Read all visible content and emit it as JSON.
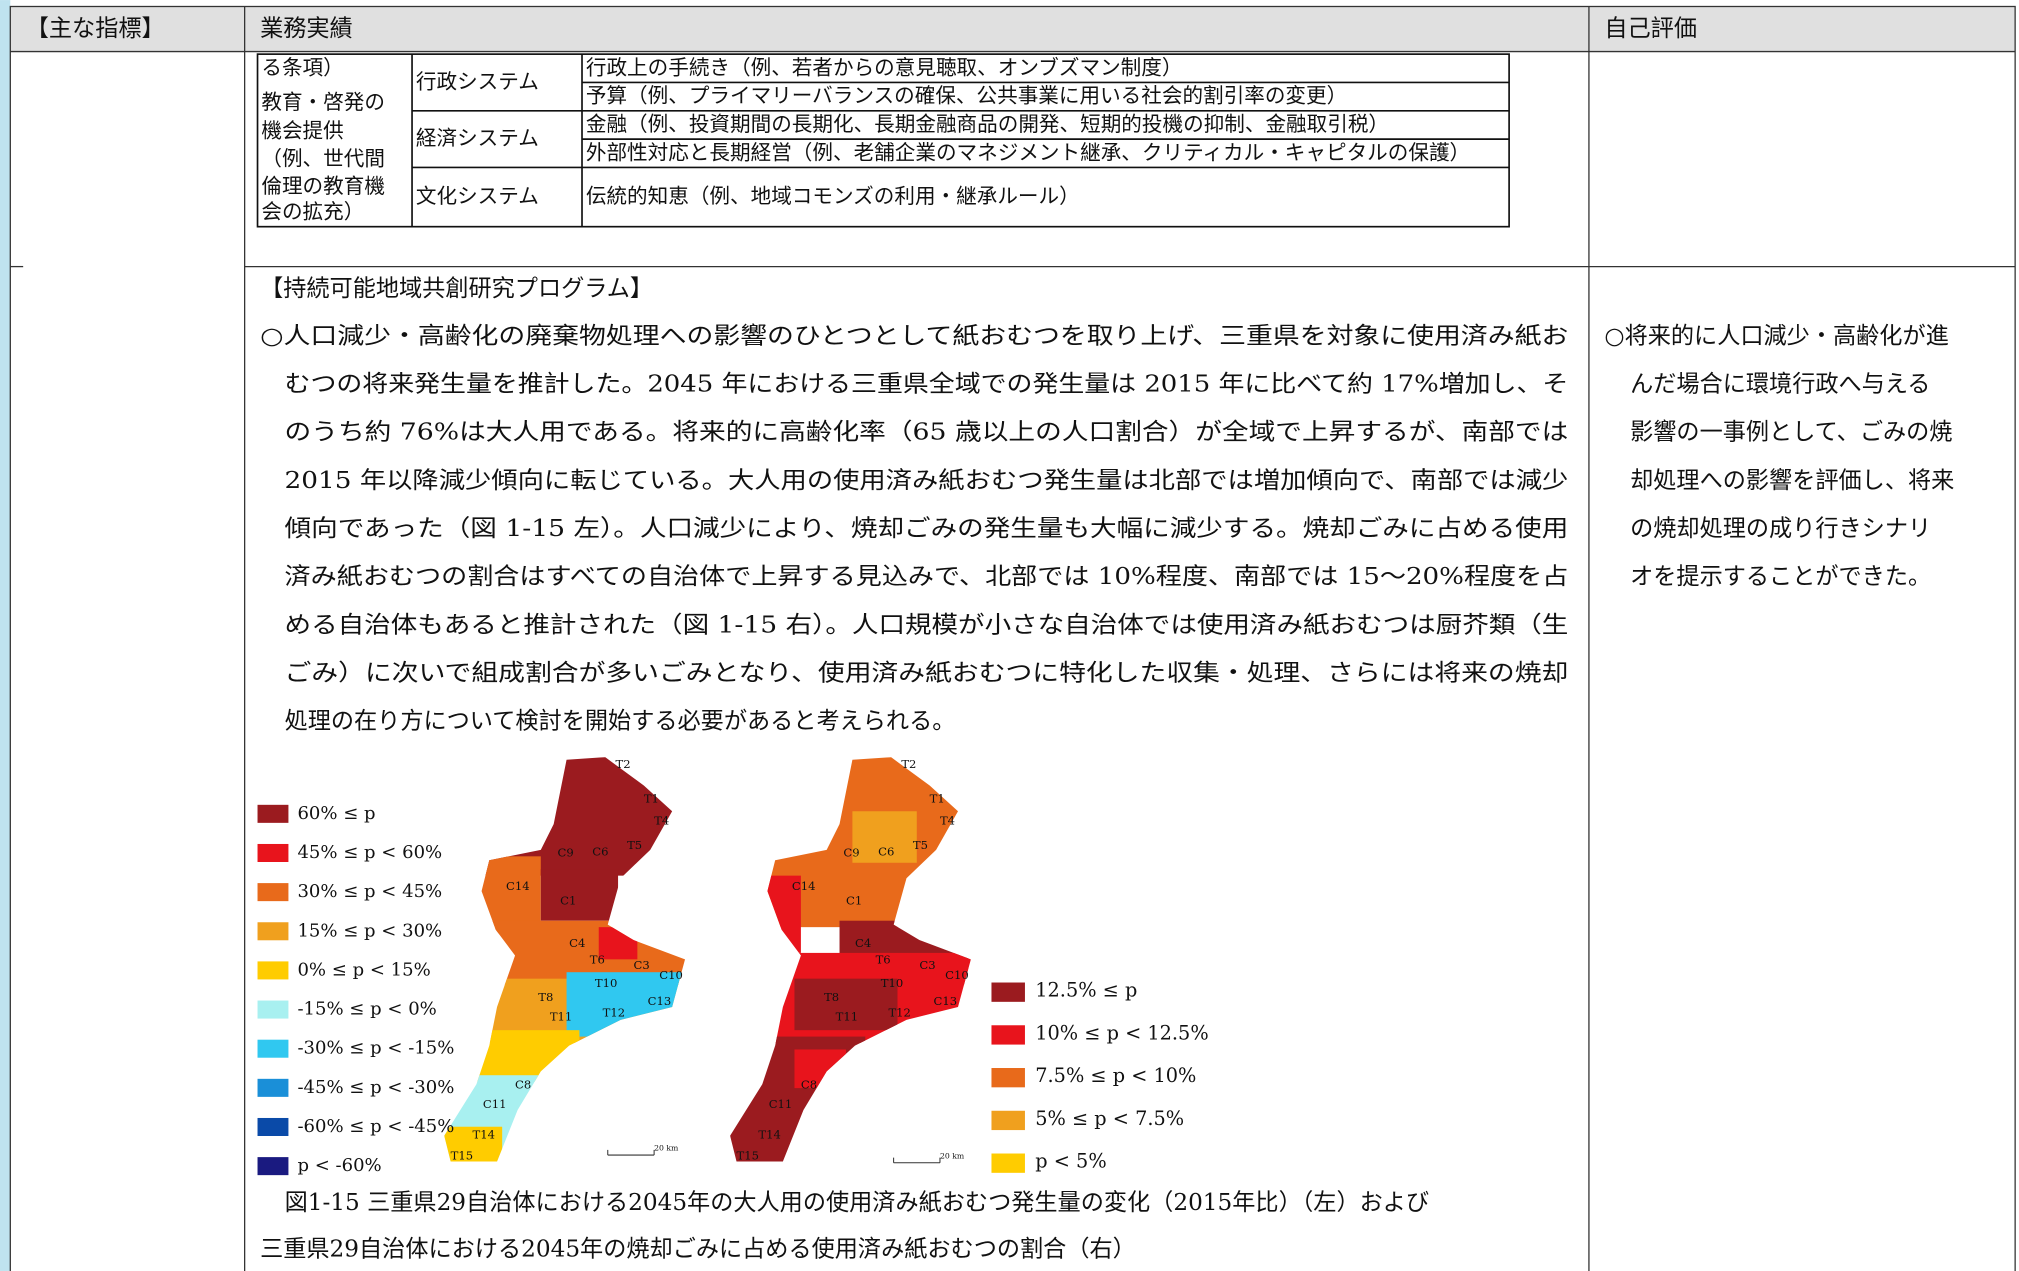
{
  "header": {
    "col1": "【主な指標】",
    "col2": "業務実績",
    "col3": "自己評価"
  },
  "inner_table": {
    "first_col": [
      "る条項）",
      "教育・啓発の",
      "機会提供",
      "（例、世代間",
      "倫理の教育機",
      "会の拡充）"
    ],
    "systems": [
      "行政システム",
      "経済システム",
      "文化システム"
    ],
    "rows": [
      "行政上の手続き（例、若者からの意見聴取、オンブズマン制度）",
      "予算（例、プライマリーバランスの確保、公共事業に用いる社会的割引率の変更）",
      "金融（例、投資期間の長期化、長期金融商品の開発、短期的投機の抑制、金融取引税）",
      "外部性対応と長期経営（例、老舗企業のマネジメント継承、クリティカル・キャピタルの保護）",
      "伝統的知恵（例、地域コモンズの利用・継承ルール）"
    ]
  },
  "section": {
    "heading": "【持続可能地域共創研究プログラム】",
    "paragraph": [
      "○人口減少・高齢化の廃棄物処理への影響のひとつとして紙おむつを取り上げ、三重県を対象に使用済み紙お",
      "むつの将来発生量を推計した。2045 年における三重県全域での発生量は 2015 年に比べて約 17%増加し、そ",
      "のうち約 76%は大人用である。将来的に高齢化率（65 歳以上の人口割合）が全域で上昇するが、南部では",
      "2015 年以降減少傾向に転じている。大人用の使用済み紙おむつ発生量は北部では増加傾向で、南部では減少",
      "傾向であった（図 1-15 左）。人口減少により、焼却ごみの発生量も大幅に減少する。焼却ごみに占める使用",
      "済み紙おむつの割合はすべての自治体で上昇する見込みで、北部では 10%程度、南部では 15～20%程度を占",
      "める自治体もあると推計された（図 1-15 右）。人口規模が小さな自治体では使用済み紙おむつは厨芥類（生",
      "ごみ）に次いで組成割合が多いごみとなり、使用済み紙おむつに特化した収集・処理、さらには将来の焼却",
      "処理の在り方について検討を開始する必要があると考えられる。"
    ],
    "evaluation": [
      "○将来的に人口減少・高齢化が進",
      "んだ場合に環境行政へ与える",
      "影響の一事例として、ごみの焼",
      "却処理への影響を評価し、将来",
      "の焼却処理の成り行きシナリ",
      "オを提示することができた。"
    ]
  },
  "figure": {
    "legend_left": [
      "60% ≤ p",
      "45% ≤ p < 60%",
      "30% ≤ p < 45%",
      "15% ≤ p < 30%",
      "0% ≤ p < 15%",
      "-15% ≤ p < 0%",
      "-30% ≤ p < -15%",
      "-45% ≤ p < -30%",
      "-60% ≤ p < -45%",
      "p < -60%"
    ],
    "legend_right": [
      "12.5% ≤ p",
      "10% ≤ p < 12.5%",
      "7.5% ≤ p < 10%",
      "5% ≤ p < 7.5%",
      "p < 5%"
    ],
    "map_labels": [
      "T2",
      "T1",
      "T4",
      "T5",
      "C9",
      "C6",
      "C14",
      "C1",
      "C4",
      "T6",
      "C3",
      "C10",
      "T10",
      "C13",
      "T8",
      "T11",
      "T12",
      "C8",
      "C11",
      "T14",
      "T15"
    ],
    "scale": "20 km",
    "caption": [
      "図1-15  三重県29自治体における2045年の大人用の使用済み紙おむつ発生量の変化（2015年比）（左）および",
      "三重県29自治体における2045年の焼却ごみに占める使用済み紙おむつの割合（右）"
    ]
  }
}
